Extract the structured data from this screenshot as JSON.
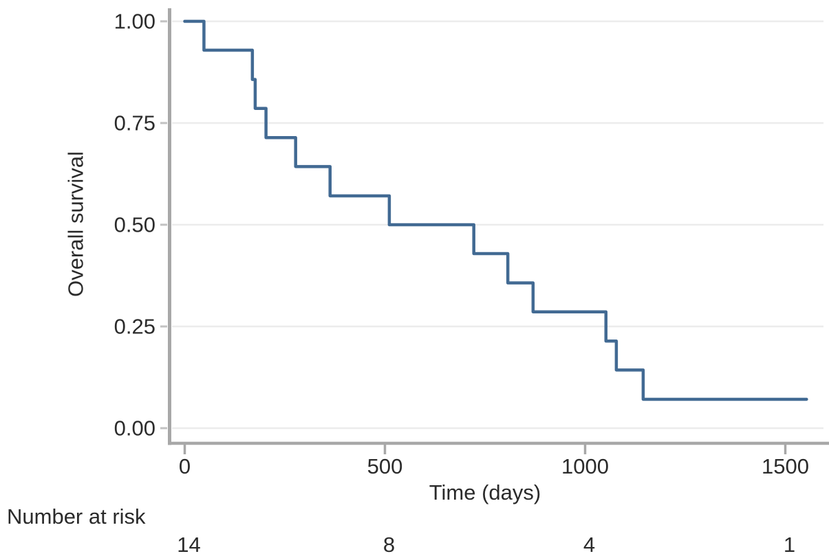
{
  "figure": {
    "background": "#ffffff"
  },
  "chart_data": {
    "type": "line",
    "subtype": "kaplan_meier_step",
    "title": "",
    "xlabel": "Time (days)",
    "ylabel": "Overall survival",
    "xlim": [
      0,
      1560
    ],
    "ylim": [
      0.0,
      1.0
    ],
    "grid": "horizontal_gridlines_only",
    "legend": "none",
    "x_ticks": [
      {
        "value": 0,
        "label": "0"
      },
      {
        "value": 500,
        "label": "500"
      },
      {
        "value": 1000,
        "label": "1000"
      },
      {
        "value": 1500,
        "label": "1500"
      }
    ],
    "y_ticks": [
      {
        "value": 0.0,
        "label": "0.00"
      },
      {
        "value": 0.25,
        "label": "0.25"
      },
      {
        "value": 0.5,
        "label": "0.50"
      },
      {
        "value": 0.75,
        "label": "0.75"
      },
      {
        "value": 1.0,
        "label": "1.00"
      }
    ],
    "colors": {
      "curve": "#426a93",
      "axis": "#a8a8a8",
      "tick": "#a8a8a8",
      "y_tick_stub": "#c2c2c2",
      "grid": "#ececec",
      "text": "#2b2b2b"
    },
    "series": [
      {
        "name": "Overall survival",
        "n_initial": 14,
        "start": {
          "t": 0,
          "s": 1.0
        },
        "events": [
          [
            48,
            0.929
          ],
          [
            169,
            0.857
          ],
          [
            176,
            0.786
          ],
          [
            203,
            0.714
          ],
          [
            277,
            0.643
          ],
          [
            363,
            0.571
          ],
          [
            511,
            0.5
          ],
          [
            722,
            0.429
          ],
          [
            807,
            0.357
          ],
          [
            870,
            0.286
          ],
          [
            1052,
            0.214
          ],
          [
            1078,
            0.143
          ],
          [
            1145,
            0.071
          ]
        ],
        "followup_end_t": 1553,
        "final_survival": 0.071
      }
    ],
    "number_at_risk": {
      "label": "Number at risk",
      "times": [
        0,
        500,
        1000,
        1500
      ],
      "counts": [
        "14",
        "8",
        "4",
        "1"
      ]
    }
  }
}
